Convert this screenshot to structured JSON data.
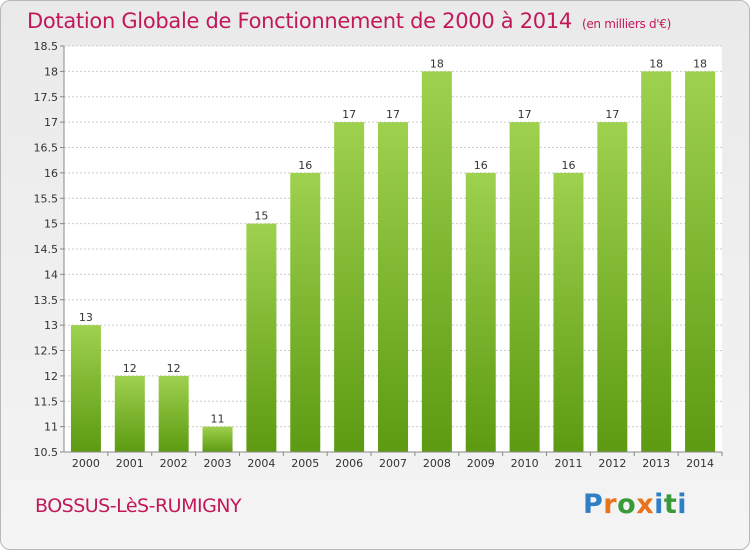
{
  "header": {
    "title": "Dotation Globale de Fonctionnement de 2000 à 2014",
    "unit": "(en milliers d'€)"
  },
  "footer": {
    "commune": "BOSSUS-LèS-RUMIGNY",
    "brand_letters": [
      "P",
      "r",
      "o",
      "x",
      "i",
      "t",
      "i"
    ],
    "brand_colors": [
      "#2f7fc4",
      "#e8731a",
      "#3a9a3a",
      "#e8731a",
      "#2f7fc4",
      "#3a9a3a",
      "#2f7fc4"
    ]
  },
  "colors": {
    "bar_top": "#9ed14e",
    "bar_bottom": "#5d9a12",
    "grid": "#cccccc",
    "axis_text": "#333333",
    "accent": "#c2185b"
  },
  "chart_data": {
    "type": "bar",
    "title": "Dotation Globale de Fonctionnement de 2000 à 2014",
    "subtitle": "(en milliers d'€)",
    "xlabel": "",
    "ylabel": "",
    "categories": [
      "2000",
      "2001",
      "2002",
      "2003",
      "2004",
      "2005",
      "2006",
      "2007",
      "2008",
      "2009",
      "2010",
      "2011",
      "2012",
      "2013",
      "2014"
    ],
    "values": [
      13,
      12,
      12,
      11,
      15,
      16,
      17,
      17,
      18,
      16,
      17,
      16,
      17,
      18,
      18
    ],
    "data_labels": [
      "13",
      "12",
      "12",
      "11",
      "15",
      "16",
      "17",
      "17",
      "18",
      "16",
      "17",
      "16",
      "17",
      "18",
      "18"
    ],
    "ylim": [
      10.5,
      18.5
    ],
    "yticks": [
      10.5,
      11,
      11.5,
      12,
      12.5,
      13,
      13.5,
      14,
      14.5,
      15,
      15.5,
      16,
      16.5,
      17,
      17.5,
      18,
      18.5
    ],
    "ytick_labels": [
      "10.5",
      "11",
      "11.5",
      "12",
      "12.5",
      "13",
      "13.5",
      "14",
      "14.5",
      "15",
      "15.5",
      "16",
      "16.5",
      "17",
      "17.5",
      "18",
      "18.5"
    ],
    "grid": true,
    "legend": "none"
  }
}
